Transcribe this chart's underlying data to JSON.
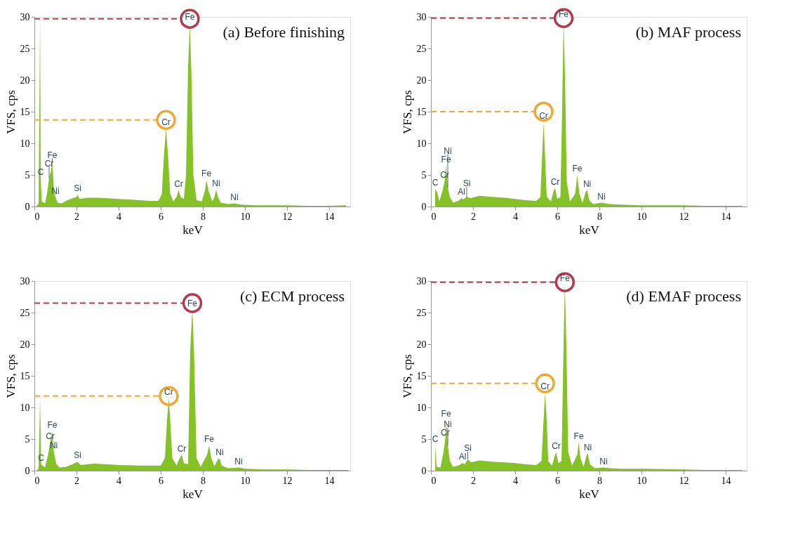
{
  "chart_data": [
    {
      "type": "area",
      "title": "(a) Before finishing",
      "xlabel": "keV",
      "ylabel": "VFS, cps",
      "xlim": [
        0,
        15
      ],
      "xticks": [
        0,
        2,
        4,
        6,
        8,
        10,
        12,
        14
      ],
      "ylim": [
        0,
        30
      ],
      "yticks": [
        0,
        5,
        10,
        15,
        20,
        25,
        30
      ],
      "x": [
        0.1,
        0.2,
        0.27,
        0.3,
        0.35,
        0.5,
        0.6,
        0.7,
        0.78,
        0.85,
        0.92,
        1.0,
        1.1,
        1.3,
        1.5,
        1.8,
        2.0,
        2.05,
        2.15,
        2.5,
        3,
        3.5,
        4,
        4.5,
        5,
        5.5,
        5.9,
        6.05,
        6.15,
        6.25,
        6.35,
        6.45,
        6.6,
        6.75,
        6.85,
        6.95,
        7.1,
        7.2,
        7.3,
        7.38,
        7.45,
        7.55,
        7.7,
        7.95,
        8.1,
        8.17,
        8.27,
        8.45,
        8.55,
        8.63,
        8.72,
        8.85,
        9.2,
        9.5,
        9.8,
        10.5,
        12,
        13,
        14,
        14.8
      ],
      "series": [
        {
          "color": "#84c225",
          "values": [
            0,
            0.5,
            30,
            4.5,
            0.8,
            0.5,
            2,
            4.5,
            5.5,
            7,
            3,
            1.5,
            0.6,
            0.5,
            0.9,
            1.3,
            1.5,
            1.9,
            1.2,
            1.4,
            1.4,
            1.3,
            1.2,
            1.1,
            1.0,
            0.9,
            0.9,
            2,
            8,
            12.3,
            8,
            2,
            0.8,
            1.5,
            2.6,
            1.5,
            1.2,
            5,
            22,
            29,
            22,
            5,
            1.0,
            0.8,
            2.5,
            4.2,
            2.5,
            0.8,
            1.5,
            2.7,
            1.5,
            0.6,
            0.4,
            0.5,
            0.3,
            0.2,
            0.2,
            0.1,
            0.1,
            0.2
          ]
        }
      ],
      "annotations": [
        {
          "text": "C",
          "x": 0.3,
          "y": 4.5
        },
        {
          "text": "Cr",
          "x": 0.7,
          "y": 4.5
        },
        {
          "text": "Fe",
          "x": 0.85,
          "y": 7
        },
        {
          "text": "Ni",
          "x": 1.0,
          "y": 1.5
        },
        {
          "text": "Si",
          "x": 2.05,
          "y": 1.9
        },
        {
          "text": "Cr",
          "x": 6.25,
          "y": 12.3
        },
        {
          "text": "Fe",
          "x": 7.38,
          "y": 29
        },
        {
          "text": "Cr",
          "x": 6.85,
          "y": 2.6
        },
        {
          "text": "Fe",
          "x": 8.17,
          "y": 4.2
        },
        {
          "text": "Ni",
          "x": 8.63,
          "y": 2.7
        },
        {
          "text": "Ni",
          "x": 9.5,
          "y": 0.5
        }
      ],
      "ref_lines": [
        {
          "axis": "y",
          "value": 29.7,
          "color": "#b5394a",
          "line_style": "dashed"
        },
        {
          "axis": "y",
          "value": 13.7,
          "color": "#f0a830",
          "line_style": "dashed"
        }
      ]
    },
    {
      "type": "area",
      "title": "(b) MAF process",
      "xlabel": "keV",
      "ylabel": "VFS, cps",
      "xlim": [
        0,
        15
      ],
      "xticks": [
        0,
        2,
        4,
        6,
        8,
        10,
        12,
        14
      ],
      "ylim": [
        0,
        30
      ],
      "yticks": [
        0,
        5,
        10,
        15,
        20,
        25,
        30
      ],
      "x": [
        0.2,
        0.3,
        0.4,
        0.55,
        0.65,
        0.72,
        0.8,
        0.9,
        1.05,
        1.3,
        1.45,
        1.55,
        1.7,
        1.85,
        2.3,
        3,
        3.5,
        4,
        4.5,
        5,
        5.2,
        5.28,
        5.35,
        5.42,
        5.5,
        5.7,
        5.83,
        5.9,
        6.0,
        6.15,
        6.23,
        6.3,
        6.37,
        6.45,
        6.6,
        6.85,
        6.95,
        7.05,
        7.2,
        7.35,
        7.42,
        7.52,
        7.7,
        8.1,
        8.5,
        9,
        10,
        12,
        13,
        14,
        14.8
      ],
      "series": [
        {
          "color": "#84c225",
          "values": [
            2.8,
            2.2,
            0.8,
            2.5,
            4,
            6.5,
            3,
            1.5,
            0.6,
            0.9,
            1.3,
            1.1,
            1.6,
            1.3,
            1.7,
            1.5,
            1.4,
            1.2,
            1.0,
            0.9,
            1.5,
            8,
            13.3,
            8,
            1.5,
            0.8,
            2.5,
            2.9,
            1.2,
            1.5,
            15,
            29.5,
            20,
            4,
            0.8,
            2,
            5,
            2,
            0.6,
            2.3,
            2.6,
            1.0,
            0.4,
            0.6,
            0.4,
            0.3,
            0.2,
            0.2,
            0.1,
            0.1,
            0.1
          ]
        }
      ],
      "annotations": [
        {
          "text": "C",
          "x": 0.2,
          "y": 2.8
        },
        {
          "text": "Cr",
          "x": 0.65,
          "y": 4
        },
        {
          "text": "Fe",
          "x": 0.72,
          "y": 6.5
        },
        {
          "text": "Ni",
          "x": 0.8,
          "y": 3
        },
        {
          "text": "Al",
          "x": 1.45,
          "y": 1.3
        },
        {
          "text": "Si",
          "x": 1.7,
          "y": 1.6
        },
        {
          "text": "Cr",
          "x": 5.35,
          "y": 13.3
        },
        {
          "text": "Fe",
          "x": 6.3,
          "y": 29.5
        },
        {
          "text": "Cr",
          "x": 5.9,
          "y": 2.9
        },
        {
          "text": "Fe",
          "x": 6.95,
          "y": 5
        },
        {
          "text": "Ni",
          "x": 7.42,
          "y": 2.6
        },
        {
          "text": "Ni",
          "x": 8.1,
          "y": 0.6
        }
      ],
      "ref_lines": [
        {
          "axis": "y",
          "value": 29.8,
          "color": "#b5394a",
          "line_style": "dashed"
        },
        {
          "axis": "y",
          "value": 15,
          "color": "#f0a830",
          "line_style": "dashed"
        }
      ]
    },
    {
      "type": "area",
      "title": "(c) ECM process",
      "xlabel": "keV",
      "ylabel": "VFS, cps",
      "xlim": [
        0,
        15
      ],
      "xticks": [
        0,
        2,
        4,
        6,
        8,
        10,
        12,
        14
      ],
      "ylim": [
        0,
        30
      ],
      "yticks": [
        0,
        5,
        10,
        15,
        20,
        25,
        30
      ],
      "x": [
        0.1,
        0.2,
        0.27,
        0.32,
        0.5,
        0.65,
        0.75,
        0.85,
        0.92,
        1.05,
        1.2,
        1.5,
        1.8,
        2.05,
        2.2,
        2.8,
        3.5,
        4,
        5,
        6,
        6.2,
        6.3,
        6.38,
        6.45,
        6.55,
        6.75,
        6.9,
        7.0,
        7.1,
        7.3,
        7.4,
        7.5,
        7.58,
        7.7,
        7.9,
        8.2,
        8.3,
        8.4,
        8.55,
        8.72,
        8.8,
        8.9,
        9.2,
        9.7,
        10,
        11,
        12,
        13,
        14,
        14.9
      ],
      "series": [
        {
          "color": "#84c225",
          "values": [
            0,
            0.3,
            11.3,
            1,
            0.5,
            2.5,
            4.5,
            6.2,
            3,
            1,
            0.5,
            0.6,
            1.0,
            1.4,
            0.9,
            1.1,
            1.0,
            0.9,
            0.8,
            0.8,
            2,
            8,
            11.5,
            8,
            2,
            0.8,
            2,
            2.5,
            1.2,
            1,
            19,
            25.5,
            19,
            2,
            0.6,
            2.5,
            4,
            2,
            0.7,
            1.8,
            1.9,
            0.8,
            0.4,
            0.5,
            0.3,
            0.2,
            0.2,
            0.1,
            0.1,
            0.1
          ]
        }
      ],
      "annotations": [
        {
          "text": "C",
          "x": 0.32,
          "y": 1
        },
        {
          "text": "Cr",
          "x": 0.75,
          "y": 4.5
        },
        {
          "text": "Fe",
          "x": 0.85,
          "y": 6.2
        },
        {
          "text": "Ni",
          "x": 0.92,
          "y": 3
        },
        {
          "text": "Si",
          "x": 2.05,
          "y": 1.4
        },
        {
          "text": "Cr",
          "x": 6.38,
          "y": 11.5
        },
        {
          "text": "Fe",
          "x": 7.5,
          "y": 25.5
        },
        {
          "text": "Cr",
          "x": 7.0,
          "y": 2.5
        },
        {
          "text": "Fe",
          "x": 8.3,
          "y": 4
        },
        {
          "text": "Ni",
          "x": 8.8,
          "y": 1.9
        },
        {
          "text": "Ni",
          "x": 9.7,
          "y": 0.5
        }
      ],
      "ref_lines": [
        {
          "axis": "y",
          "value": 26.5,
          "color": "#b5394a",
          "line_style": "dashed"
        },
        {
          "axis": "y",
          "value": 11.8,
          "color": "#f0a830",
          "line_style": "dashed"
        }
      ]
    },
    {
      "type": "area",
      "title": "(d) EMAF process",
      "xlabel": "keV",
      "ylabel": "VFS, cps",
      "xlim": [
        0,
        15
      ],
      "xticks": [
        0,
        2,
        4,
        6,
        8,
        10,
        12,
        14
      ],
      "ylim": [
        0,
        30
      ],
      "yticks": [
        0,
        5,
        10,
        15,
        20,
        25,
        30
      ],
      "x": [
        0.2,
        0.27,
        0.45,
        0.6,
        0.68,
        0.72,
        0.8,
        0.9,
        1.05,
        1.3,
        1.5,
        1.6,
        1.75,
        1.9,
        2.3,
        3,
        3.5,
        4,
        4.5,
        5,
        5.25,
        5.35,
        5.42,
        5.5,
        5.57,
        5.75,
        5.9,
        5.95,
        6.05,
        6.2,
        6.3,
        6.36,
        6.43,
        6.52,
        6.7,
        6.95,
        7.02,
        7.1,
        7.25,
        7.4,
        7.45,
        7.55,
        7.8,
        8.2,
        8.5,
        9,
        10,
        12,
        13,
        14,
        14.8
      ],
      "series": [
        {
          "color": "#84c225",
          "values": [
            4,
            0.6,
            0.5,
            3,
            5,
            8,
            4,
            1.5,
            0.6,
            0.8,
            1.2,
            1.0,
            1.8,
            1.3,
            1.6,
            1.4,
            1.3,
            1.2,
            1.0,
            0.9,
            1.5,
            8,
            12.3,
            8,
            1.5,
            0.8,
            2.5,
            2.9,
            1.2,
            1.5,
            20,
            29.5,
            20,
            3,
            0.8,
            2.5,
            4.5,
            2,
            0.6,
            2.5,
            2.7,
            1.0,
            0.4,
            0.5,
            0.4,
            0.3,
            0.3,
            0.2,
            0.1,
            0.1,
            0.1
          ]
        }
      ],
      "annotations": [
        {
          "text": "C",
          "x": 0.2,
          "y": 4
        },
        {
          "text": "Cr",
          "x": 0.68,
          "y": 5
        },
        {
          "text": "Fe",
          "x": 0.72,
          "y": 8
        },
        {
          "text": "Ni",
          "x": 0.8,
          "y": 4
        },
        {
          "text": "Al",
          "x": 1.5,
          "y": 1.2
        },
        {
          "text": "Si",
          "x": 1.75,
          "y": 1.8
        },
        {
          "text": "Cr",
          "x": 5.42,
          "y": 12.3
        },
        {
          "text": "Fe",
          "x": 6.36,
          "y": 29.5
        },
        {
          "text": "Cr",
          "x": 5.95,
          "y": 2.9
        },
        {
          "text": "Fe",
          "x": 7.02,
          "y": 4.5
        },
        {
          "text": "Ni",
          "x": 7.45,
          "y": 2.7
        },
        {
          "text": "Ni",
          "x": 8.2,
          "y": 0.5
        }
      ],
      "ref_lines": [
        {
          "axis": "y",
          "value": 29.8,
          "color": "#b5394a",
          "line_style": "dashed"
        },
        {
          "axis": "y",
          "value": 13.8,
          "color": "#f0a830",
          "line_style": "dashed"
        }
      ]
    }
  ]
}
